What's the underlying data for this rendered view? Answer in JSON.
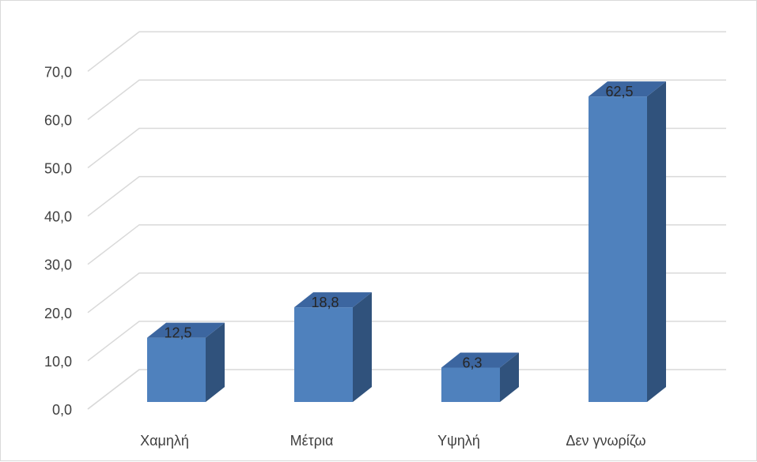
{
  "chart_data": {
    "type": "bar",
    "style": "3d-column",
    "categories": [
      "Χαμηλή",
      "Μέτρια",
      "Υψηλή",
      "Δεν γνωρίζω"
    ],
    "values": [
      12.5,
      18.8,
      6.3,
      62.5
    ],
    "data_labels": [
      "12,5",
      "18,8",
      "6,3",
      "62,5"
    ],
    "y_ticks": [
      "0,0",
      "10,0",
      "20,0",
      "30,0",
      "40,0",
      "50,0",
      "60,0",
      "70,0"
    ],
    "ylim": [
      0,
      70
    ],
    "grid": true,
    "legend": "none",
    "title": "",
    "xlabel": "",
    "ylabel": ""
  },
  "colors": {
    "bar_front": "#4f81bd",
    "bar_side": "#30527c",
    "bar_top": "#3c66a0",
    "grid": "#d9d9d9",
    "text": "#404040",
    "border": "#d9d9d9"
  }
}
